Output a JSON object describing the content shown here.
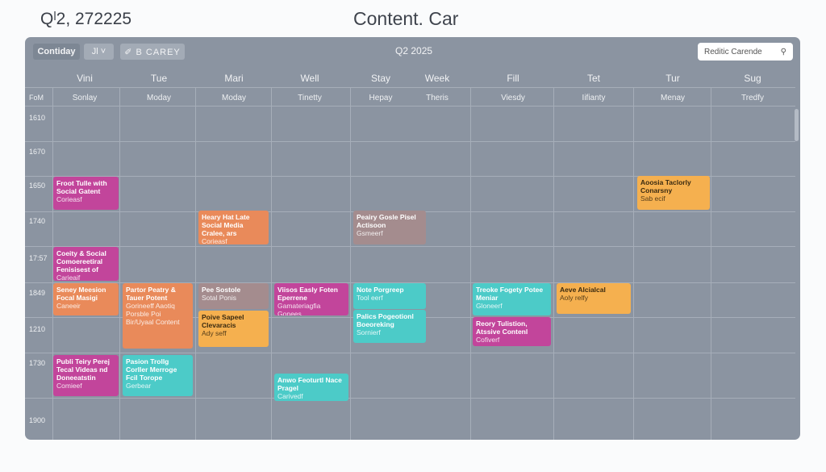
{
  "header": {
    "left": "Qˡ2, 272225",
    "title": "Content. Car"
  },
  "toolbar": {
    "view_button": "Contiday",
    "filter_button": "Jl ˅",
    "category_button": "✐ B  CAREY",
    "quarter": "Q2 2025",
    "search_value": "Reditic Carende"
  },
  "days": [
    "Vini",
    "Tue",
    "Mari",
    "Well",
    "Stay",
    "Week",
    "Fill",
    "Tet",
    "Tur",
    "Sug"
  ],
  "subdays": [
    "Sonlay",
    "Moday",
    "Moday",
    "Tinetty",
    "Hepay",
    "Theris",
    "Viesdy",
    "Iifianty",
    "Menay",
    "Tredfy"
  ],
  "corner_label": "FoM",
  "times": [
    "1610",
    "1670",
    "1650",
    "1740",
    "17:57",
    "1849",
    "1210",
    "1730",
    "1900"
  ],
  "colors": {
    "magenta": "#c2459b",
    "orange": "#e98a5a",
    "amber": "#f5b04f",
    "teal": "#4ccbc8",
    "muted": "#a48c8e"
  },
  "events": [
    {
      "title": "Froot Tulle with Social Gatent",
      "sub": "Corieasf",
      "color": "magenta"
    },
    {
      "title": "Heary Hat Late Social Media Cralee, ars",
      "sub": "Corieasf",
      "color": "orange"
    },
    {
      "title": "Peairy Gosle Pisel Actisoon",
      "sub": "Gsmeerf",
      "color": "muted"
    },
    {
      "title": "Aoosia Taclorly Conarsny",
      "sub": "Sab ecif",
      "color": "amber"
    },
    {
      "title": "Coeity & Social Comoereetiral Fenisisest of",
      "sub": "Carieaif",
      "color": "magenta"
    },
    {
      "title": "Seney Meesion Focal Masigi",
      "sub": "Caneeir",
      "color": "orange"
    },
    {
      "title": "Partor Peatry & Tauer Potent",
      "sub": "Gorineeff Aaotiq Porsble Poi Bir/Uyaal Content",
      "color": "orange"
    },
    {
      "title": "Pee Sostole",
      "sub": "Sotal Ponis",
      "color": "muted"
    },
    {
      "title": "Poive Sapeel Clevaracis",
      "sub": "Ady seff",
      "color": "amber"
    },
    {
      "title": "Viisos Easly Foten Eperrene",
      "sub": "Gamateriagfia Gonees",
      "color": "magenta"
    },
    {
      "title": "Note Porgreep",
      "sub": "Tool eerf",
      "color": "teal"
    },
    {
      "title": "Palics Pogeotionl Boeoreking",
      "sub": "Sornierf",
      "color": "teal"
    },
    {
      "title": "Treoke Fogety Potee Meniar",
      "sub": "Gloneerf",
      "color": "teal"
    },
    {
      "title": "Reory Tulistion, Atssive Contenl",
      "sub": "Cofiverf",
      "color": "magenta"
    },
    {
      "title": "Aeve Alcialcal",
      "sub": "Aoly relfy",
      "color": "amber"
    },
    {
      "title": "Publi Teiry Perej Tecal Videas nd Doneeatstin",
      "sub": "Comieef",
      "color": "magenta"
    },
    {
      "title": "Pasion Trollg Corller Merroge Fcil Torope",
      "sub": "Gerbear",
      "color": "teal"
    },
    {
      "title": "Anwo Feoturtl Nace Pragel",
      "sub": "Carivedf",
      "color": "teal"
    }
  ]
}
